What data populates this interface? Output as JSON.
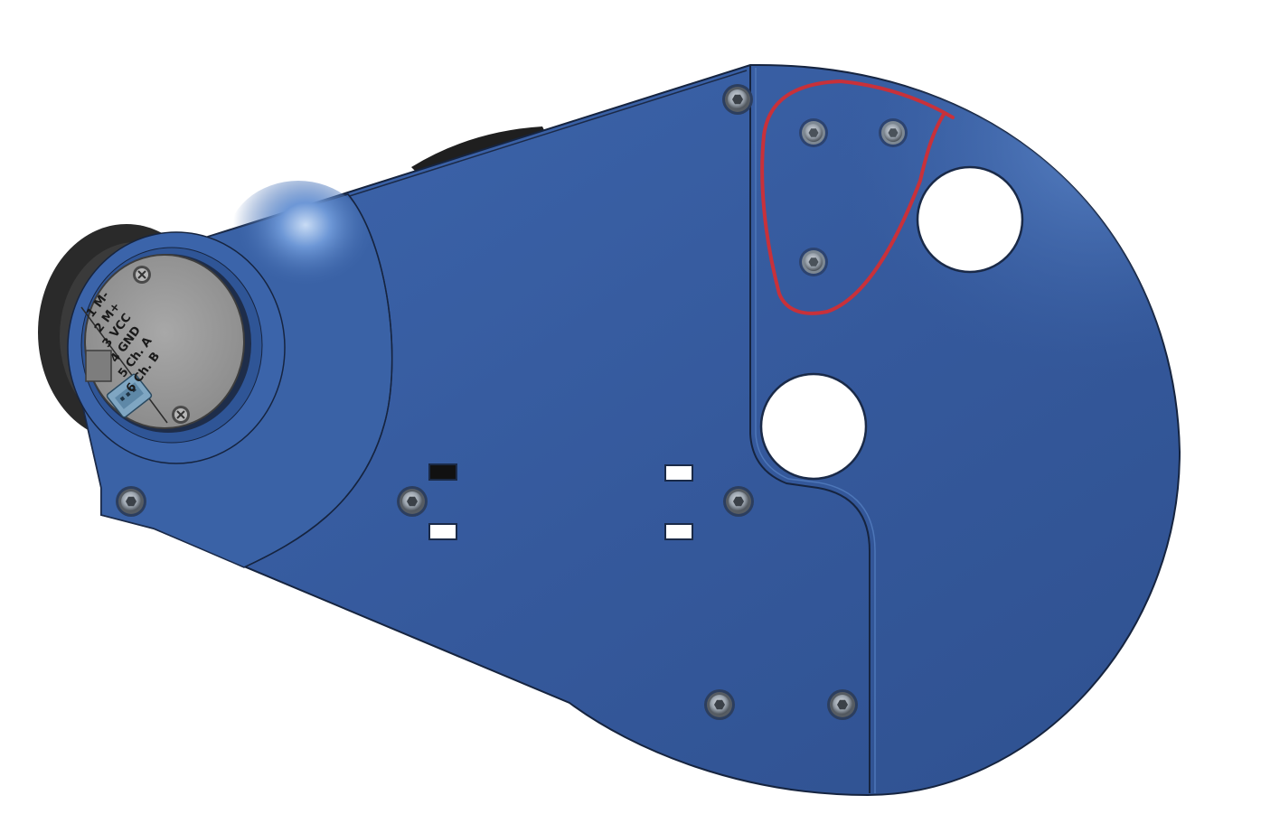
{
  "colors": {
    "background": "#ffffff",
    "plate_blue": "#3a63a8",
    "plate_highlight": "#5b86c9",
    "plate_edge": "#16243f",
    "motor_cap_grey": "#9a9a9a",
    "motor_rim_black": "#2a2a2a",
    "connector_blue": "#7fa6c2",
    "annotation_red": "#c8313a"
  },
  "encoder_label": {
    "pins": [
      "1 M-",
      "2 M+",
      "3 VCC",
      "4 GND",
      "5 Ch. A",
      "6 Ch. B"
    ]
  },
  "annotation": {
    "color": "#c8313a",
    "icon": "hand-drawn-outline"
  }
}
